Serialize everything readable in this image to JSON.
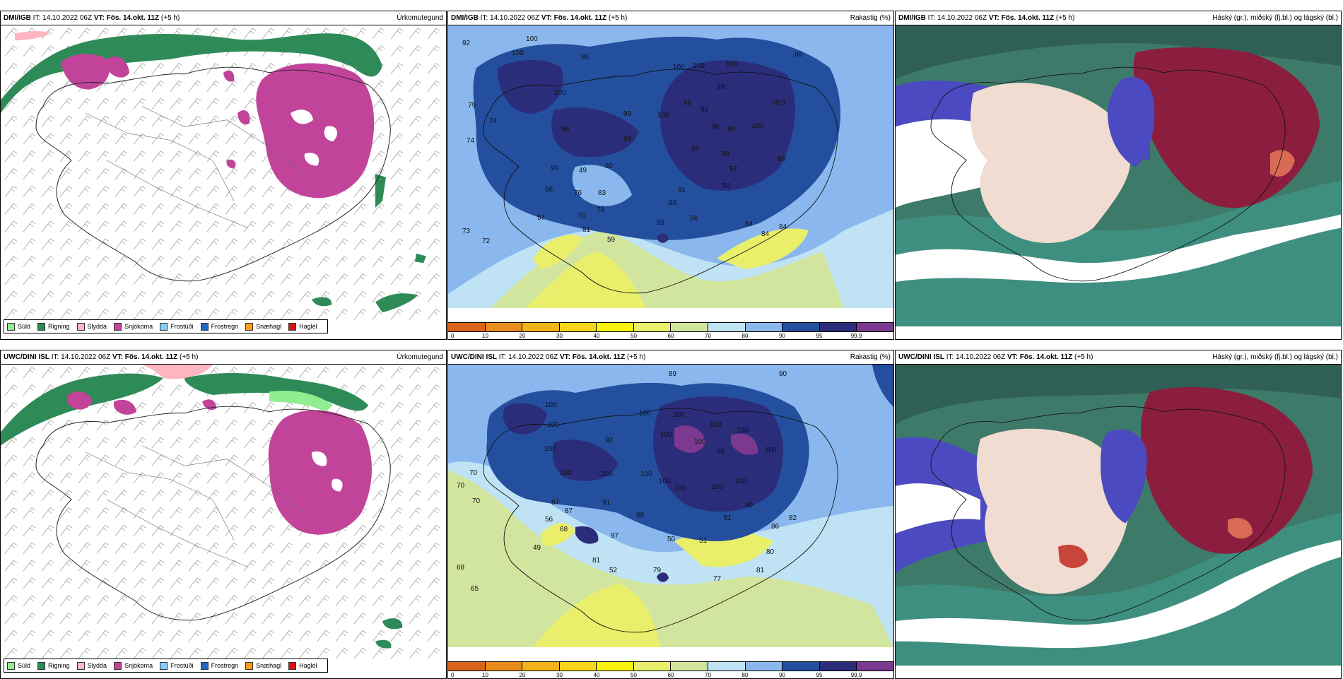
{
  "header_common": {
    "it_label": "IT:",
    "it_value": "14.10.2022 06Z",
    "vt_label": "VT:",
    "vt_value": "Fös. 14.okt. 11Z",
    "lead": "(+5 h)"
  },
  "rows": [
    {
      "source": "DMI/IGB"
    },
    {
      "source": "UWC/DINI ISL"
    }
  ],
  "titles": {
    "precip_type": "Úrkomutegund",
    "humidity": "Rakastig (%)",
    "clouds": "Háský (gr.), miðský (fj.bl.) og lágský (bl.)"
  },
  "precip_legend": [
    {
      "label": "Súld",
      "color": "#90ee90"
    },
    {
      "label": "Rigning",
      "color": "#2e8b57"
    },
    {
      "label": "Slydda",
      "color": "#ffb6c1"
    },
    {
      "label": "Snjókoma",
      "color": "#c2449a"
    },
    {
      "label": "Frostúði",
      "color": "#87cefa"
    },
    {
      "label": "Frostregn",
      "color": "#1e66c8"
    },
    {
      "label": "Snæhagl",
      "color": "#ff9d1a"
    },
    {
      "label": "Haglél",
      "color": "#e01010"
    }
  ],
  "humidity_colorbar": {
    "colors": [
      "#d9631a",
      "#e88c1c",
      "#f2b31a",
      "#f6d61a",
      "#f8f20e",
      "#e9ef6a",
      "#d2e59e",
      "#bfe3f5",
      "#8ab8ee",
      "#244f9e",
      "#2b2d7a",
      "#7b3a8f"
    ],
    "ticks": [
      "0",
      "10",
      "20",
      "30",
      "40",
      "50",
      "60",
      "70",
      "80",
      "90",
      "95",
      "99.9"
    ]
  },
  "humidity_labels_top": [
    {
      "v": "92",
      "x": 20,
      "y": 28
    },
    {
      "v": "100",
      "x": 110,
      "y": 22
    },
    {
      "v": "100",
      "x": 90,
      "y": 42
    },
    {
      "v": "85",
      "x": 188,
      "y": 48
    },
    {
      "v": "79",
      "x": 28,
      "y": 116
    },
    {
      "v": "74",
      "x": 58,
      "y": 138
    },
    {
      "v": "74",
      "x": 26,
      "y": 166
    },
    {
      "v": "100",
      "x": 150,
      "y": 98
    },
    {
      "v": "99",
      "x": 248,
      "y": 128
    },
    {
      "v": "99",
      "x": 160,
      "y": 150
    },
    {
      "v": "98",
      "x": 248,
      "y": 164
    },
    {
      "v": "100",
      "x": 318,
      "y": 62
    },
    {
      "v": "100",
      "x": 346,
      "y": 60
    },
    {
      "v": "100",
      "x": 393,
      "y": 58
    },
    {
      "v": "99",
      "x": 380,
      "y": 90
    },
    {
      "v": "99",
      "x": 333,
      "y": 113
    },
    {
      "v": "99",
      "x": 357,
      "y": 122
    },
    {
      "v": "100",
      "x": 296,
      "y": 130
    },
    {
      "v": "99",
      "x": 372,
      "y": 146
    },
    {
      "v": "98",
      "x": 395,
      "y": 150
    },
    {
      "v": "97",
      "x": 344,
      "y": 178
    },
    {
      "v": "98",
      "x": 387,
      "y": 185
    },
    {
      "v": "100",
      "x": 430,
      "y": 145
    },
    {
      "v": "99.9",
      "x": 458,
      "y": 112
    },
    {
      "v": "88",
      "x": 490,
      "y": 44
    },
    {
      "v": "88",
      "x": 466,
      "y": 192
    },
    {
      "v": "90",
      "x": 145,
      "y": 205
    },
    {
      "v": "49",
      "x": 185,
      "y": 208
    },
    {
      "v": "92",
      "x": 222,
      "y": 202
    },
    {
      "v": "56",
      "x": 137,
      "y": 235
    },
    {
      "v": "76",
      "x": 178,
      "y": 240
    },
    {
      "v": "83",
      "x": 212,
      "y": 240
    },
    {
      "v": "79",
      "x": 210,
      "y": 264
    },
    {
      "v": "57",
      "x": 126,
      "y": 275
    },
    {
      "v": "76",
      "x": 183,
      "y": 272
    },
    {
      "v": "60",
      "x": 312,
      "y": 254
    },
    {
      "v": "91",
      "x": 325,
      "y": 236
    },
    {
      "v": "56",
      "x": 342,
      "y": 276
    },
    {
      "v": "56",
      "x": 388,
      "y": 230
    },
    {
      "v": "57",
      "x": 398,
      "y": 206
    },
    {
      "v": "93",
      "x": 295,
      "y": 282
    },
    {
      "v": "81",
      "x": 190,
      "y": 292
    },
    {
      "v": "59",
      "x": 225,
      "y": 306
    },
    {
      "v": "73",
      "x": 20,
      "y": 294
    },
    {
      "v": "72",
      "x": 48,
      "y": 308
    },
    {
      "v": "84",
      "x": 420,
      "y": 284
    },
    {
      "v": "84",
      "x": 443,
      "y": 298
    },
    {
      "v": "84",
      "x": 468,
      "y": 288
    }
  ],
  "humidity_labels_bottom": [
    {
      "v": "89",
      "x": 312,
      "y": 16
    },
    {
      "v": "90",
      "x": 468,
      "y": 16
    },
    {
      "v": "100",
      "x": 137,
      "y": 60
    },
    {
      "v": "100",
      "x": 140,
      "y": 88
    },
    {
      "v": "100",
      "x": 136,
      "y": 122
    },
    {
      "v": "100",
      "x": 158,
      "y": 156
    },
    {
      "v": "100",
      "x": 270,
      "y": 72
    },
    {
      "v": "100",
      "x": 318,
      "y": 74
    },
    {
      "v": "100",
      "x": 370,
      "y": 88
    },
    {
      "v": "100",
      "x": 408,
      "y": 96
    },
    {
      "v": "100",
      "x": 300,
      "y": 102
    },
    {
      "v": "100",
      "x": 348,
      "y": 112
    },
    {
      "v": "98",
      "x": 380,
      "y": 126
    },
    {
      "v": "100",
      "x": 448,
      "y": 124
    },
    {
      "v": "100",
      "x": 272,
      "y": 158
    },
    {
      "v": "100",
      "x": 216,
      "y": 158
    },
    {
      "v": "100",
      "x": 298,
      "y": 168
    },
    {
      "v": "100",
      "x": 320,
      "y": 178
    },
    {
      "v": "100",
      "x": 372,
      "y": 176
    },
    {
      "v": "100",
      "x": 405,
      "y": 168
    },
    {
      "v": "92",
      "x": 222,
      "y": 110
    },
    {
      "v": "70",
      "x": 30,
      "y": 156
    },
    {
      "v": "70",
      "x": 12,
      "y": 174
    },
    {
      "v": "70",
      "x": 34,
      "y": 196
    },
    {
      "v": "87",
      "x": 146,
      "y": 198
    },
    {
      "v": "87",
      "x": 165,
      "y": 210
    },
    {
      "v": "91",
      "x": 218,
      "y": 198
    },
    {
      "v": "88",
      "x": 266,
      "y": 216
    },
    {
      "v": "56",
      "x": 137,
      "y": 222
    },
    {
      "v": "68",
      "x": 158,
      "y": 236
    },
    {
      "v": "80",
      "x": 420,
      "y": 202
    },
    {
      "v": "51",
      "x": 390,
      "y": 220
    },
    {
      "v": "82",
      "x": 482,
      "y": 220
    },
    {
      "v": "86",
      "x": 457,
      "y": 232
    },
    {
      "v": "50",
      "x": 310,
      "y": 250
    },
    {
      "v": "51",
      "x": 355,
      "y": 252
    },
    {
      "v": "49",
      "x": 120,
      "y": 262
    },
    {
      "v": "97",
      "x": 230,
      "y": 245
    },
    {
      "v": "81",
      "x": 204,
      "y": 280
    },
    {
      "v": "52",
      "x": 228,
      "y": 294
    },
    {
      "v": "79",
      "x": 290,
      "y": 294
    },
    {
      "v": "80",
      "x": 450,
      "y": 268
    },
    {
      "v": "81",
      "x": 436,
      "y": 294
    },
    {
      "v": "77",
      "x": 375,
      "y": 306
    },
    {
      "v": "68",
      "x": 12,
      "y": 290
    },
    {
      "v": "65",
      "x": 32,
      "y": 320
    }
  ]
}
